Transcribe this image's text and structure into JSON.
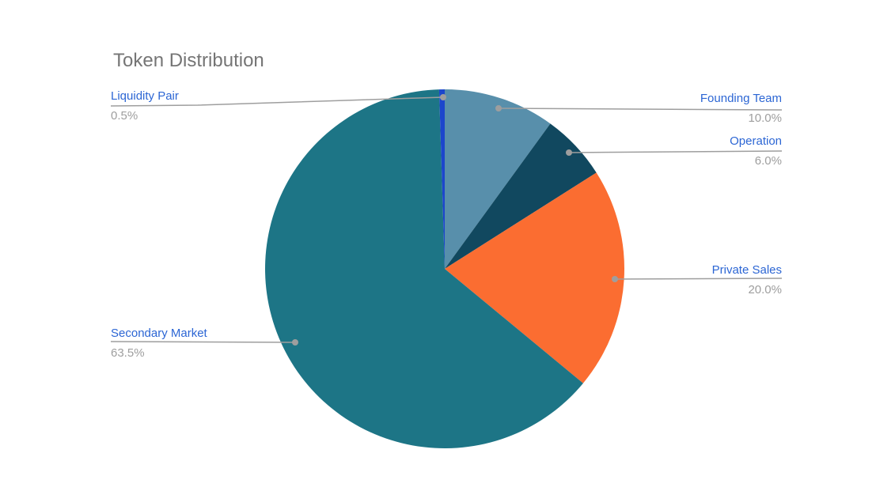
{
  "chart_data": {
    "type": "pie",
    "title": "Token Distribution",
    "direction": "clockwise",
    "start_angle_deg": 0,
    "legend_position": "labeled-callouts",
    "slices": [
      {
        "label": "Founding Team",
        "value": 10.0,
        "display": "10.0%",
        "color": "#588fab"
      },
      {
        "label": "Operation",
        "value": 6.0,
        "display": "6.0%",
        "color": "#11485f"
      },
      {
        "label": "Private Sales",
        "value": 20.0,
        "display": "20.0%",
        "color": "#fb6d31"
      },
      {
        "label": "Secondary Market",
        "value": 63.5,
        "display": "63.5%",
        "color": "#1d7586"
      },
      {
        "label": "Liquidity Pair",
        "value": 0.5,
        "display": "0.5%",
        "color": "#1c46cc"
      }
    ]
  },
  "style": {
    "title_color": "#757575",
    "label_color": "#2c66d4",
    "value_color": "#9e9e9e",
    "leader_line_color": "#9e9e9e",
    "background_color": "#ffffff"
  }
}
